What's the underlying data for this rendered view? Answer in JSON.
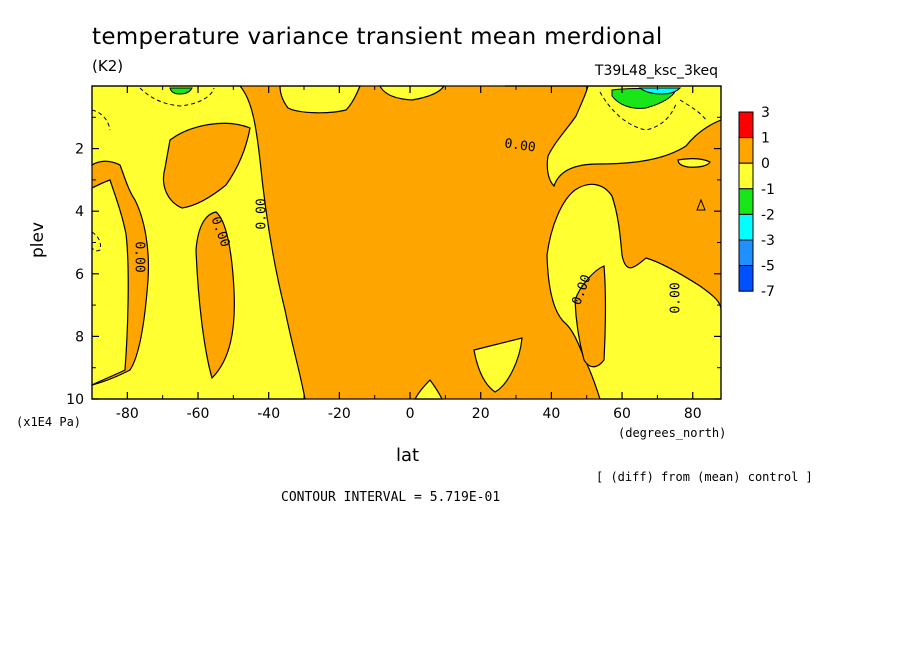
{
  "chart_data": {
    "type": "contour",
    "title": "temperature variance transient mean merdional",
    "units": "(K2)",
    "model_label": "T39L48_ksc_3keq",
    "xlabel": "lat",
    "x_unit": "(degrees_north)",
    "ylabel": "plev",
    "y_unit": "(x1E4 Pa)",
    "footnote": "[ (diff) from (mean) control ]",
    "contour_interval": "CONTOUR INTERVAL = 5.719E-01",
    "xlim": [
      -90,
      88
    ],
    "ylim": [
      10,
      0
    ],
    "x_ticks": [
      -80,
      -60,
      -40,
      -20,
      0,
      20,
      40,
      60,
      80
    ],
    "y_ticks": [
      2,
      4,
      6,
      8,
      10
    ],
    "contour_labels": [
      "0.00",
      "0.00",
      "0.00",
      "0.00",
      "0.00",
      "0.00"
    ],
    "legend": {
      "labels": [
        "3",
        "1",
        "0",
        "-1",
        "-2",
        "-3",
        "-5",
        "-7"
      ],
      "colors": [
        "#ff0000",
        "#ffa500",
        "#ffff32",
        "#19e619",
        "#00ffff",
        "#1e90ff",
        "#0050ff"
      ]
    },
    "colors": {
      "positive": "#ffa500",
      "negative": "#ffff32",
      "green": "#19e619",
      "cyan": "#00ffff"
    }
  }
}
